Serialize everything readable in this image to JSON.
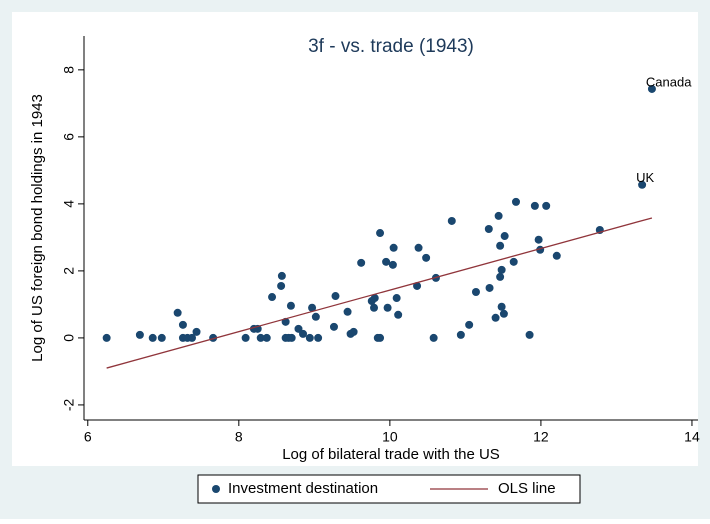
{
  "chart_data": {
    "type": "scatter",
    "title": "3f - vs. trade (1943)",
    "x_label": "Log of bilateral trade with the US",
    "y_label": "Log of US foreign bond holdings in 1943",
    "xlim": [
      5.95,
      14.08
    ],
    "ylim": [
      -2.45,
      9.01
    ],
    "xticks": [
      6,
      8,
      10,
      12,
      14
    ],
    "yticks": [
      -2,
      0,
      2,
      4,
      6,
      8
    ],
    "legend": "bottom",
    "series": [
      {
        "name": "Investment destination",
        "type": "scatter",
        "color": "#1a476f",
        "x": [
          6.25,
          6.69,
          6.86,
          6.98,
          7.19,
          7.26,
          7.26,
          7.32,
          7.38,
          7.44,
          7.66,
          8.09,
          8.2,
          8.25,
          8.29,
          8.37,
          8.44,
          8.57,
          8.56,
          8.62,
          8.62,
          8.66,
          8.69,
          8.7,
          8.79,
          8.85,
          8.94,
          8.97,
          9.02,
          9.05,
          9.26,
          9.28,
          9.44,
          9.48,
          9.52,
          9.62,
          9.76,
          9.8,
          9.79,
          9.84,
          9.87,
          9.87,
          9.95,
          9.97,
          10.04,
          10.05,
          10.09,
          10.11,
          10.36,
          10.38,
          10.48,
          10.61,
          10.58,
          10.82,
          10.94,
          11.05,
          11.14,
          11.31,
          11.32,
          11.4,
          11.46,
          11.44,
          11.48,
          11.46,
          11.48,
          11.51,
          11.52,
          11.67,
          11.64,
          11.85,
          11.92,
          11.97,
          11.99,
          12.07,
          12.21,
          12.78,
          13.34,
          13.47
        ],
        "values": [
          0,
          0.09,
          0,
          0,
          0.75,
          0.39,
          0,
          0,
          0,
          0.18,
          0,
          0,
          0.27,
          0.27,
          0,
          0,
          1.22,
          1.85,
          1.55,
          0,
          0.48,
          0,
          0.96,
          0,
          0.27,
          0.12,
          0,
          0.9,
          0.63,
          0,
          0.33,
          1.25,
          0.78,
          0.12,
          0.18,
          2.24,
          1.1,
          1.19,
          0.9,
          0,
          0,
          3.13,
          2.27,
          0.9,
          2.18,
          2.69,
          1.19,
          0.69,
          1.55,
          2.69,
          2.39,
          1.79,
          0,
          3.49,
          0.09,
          0.39,
          1.37,
          3.25,
          1.49,
          0.6,
          2.75,
          3.64,
          2.03,
          1.82,
          0.93,
          0.72,
          3.04,
          4.06,
          2.27,
          0.09,
          3.94,
          2.93,
          2.63,
          3.94,
          2.45,
          3.22,
          4.57,
          7.43
        ],
        "point_labels": [
          null,
          null,
          null,
          null,
          null,
          null,
          null,
          null,
          null,
          null,
          null,
          null,
          null,
          null,
          null,
          null,
          null,
          null,
          null,
          null,
          null,
          null,
          null,
          null,
          null,
          null,
          null,
          null,
          null,
          null,
          null,
          null,
          null,
          null,
          null,
          null,
          null,
          null,
          null,
          null,
          null,
          null,
          null,
          null,
          null,
          null,
          null,
          null,
          null,
          null,
          null,
          null,
          null,
          null,
          null,
          null,
          null,
          null,
          null,
          null,
          null,
          null,
          null,
          null,
          null,
          null,
          null,
          null,
          null,
          null,
          null,
          null,
          null,
          null,
          null,
          null,
          "UK",
          "Canada"
        ]
      },
      {
        "name": "OLS line",
        "type": "line",
        "color": "#90353b",
        "x": [
          6.25,
          13.47
        ],
        "values": [
          -0.9,
          3.58
        ]
      }
    ]
  }
}
